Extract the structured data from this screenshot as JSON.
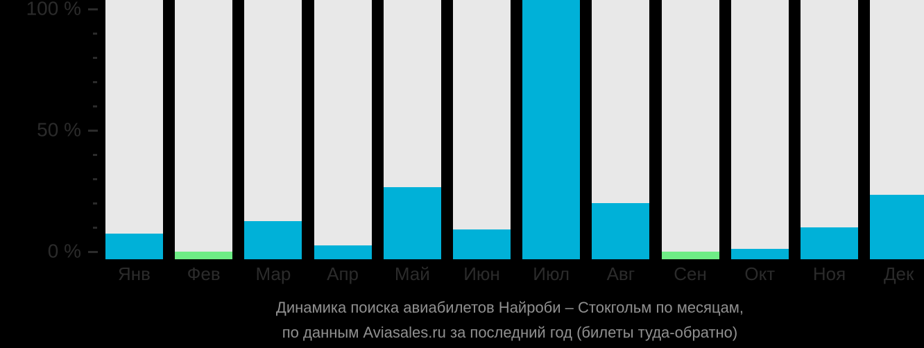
{
  "chart_data": {
    "type": "bar",
    "title": "Динамика поиска авиабилетов Найроби – Стокгольм по месяцам,",
    "subtitle": "по данным Aviasales.ru за последний год (билеты туда-обратно)",
    "unit": "%",
    "ylim": [
      0,
      100
    ],
    "grid": false,
    "legend": false,
    "axis": {
      "ticks": [
        {
          "percent": 100,
          "label": "100 %"
        },
        {
          "percent": 90
        },
        {
          "percent": 80
        },
        {
          "percent": 70
        },
        {
          "percent": 60
        },
        {
          "percent": 50,
          "label": "50 %"
        },
        {
          "percent": 40
        },
        {
          "percent": 30
        },
        {
          "percent": 20
        },
        {
          "percent": 10
        },
        {
          "percent": 0,
          "label": "0 %"
        }
      ]
    },
    "months": [
      {
        "label": "Янв",
        "value": 7.5,
        "color": "cyan"
      },
      {
        "label": "Фев",
        "value": 0,
        "color": "green"
      },
      {
        "label": "Мар",
        "value": 12.5,
        "color": "cyan"
      },
      {
        "label": "Апр",
        "value": 2.5,
        "color": "cyan"
      },
      {
        "label": "Май",
        "value": 26.5,
        "color": "cyan"
      },
      {
        "label": "Июн",
        "value": 9,
        "color": "cyan"
      },
      {
        "label": "Июл",
        "value": 100,
        "color": "cyan"
      },
      {
        "label": "Авг",
        "value": 20,
        "color": "cyan"
      },
      {
        "label": "Сен",
        "value": 0,
        "color": "green"
      },
      {
        "label": "Окт",
        "value": 1,
        "color": "cyan"
      },
      {
        "label": "Ноя",
        "value": 10,
        "color": "cyan"
      },
      {
        "label": "Дек",
        "value": 23.5,
        "color": "cyan"
      }
    ],
    "colors": {
      "bar": "#00b1d8",
      "highlight_bar": "#6eec85",
      "column_background": "#e8e8e8",
      "page_background": "#000000",
      "axis_text": "#2b2b2b",
      "caption_text": "#909090"
    }
  }
}
